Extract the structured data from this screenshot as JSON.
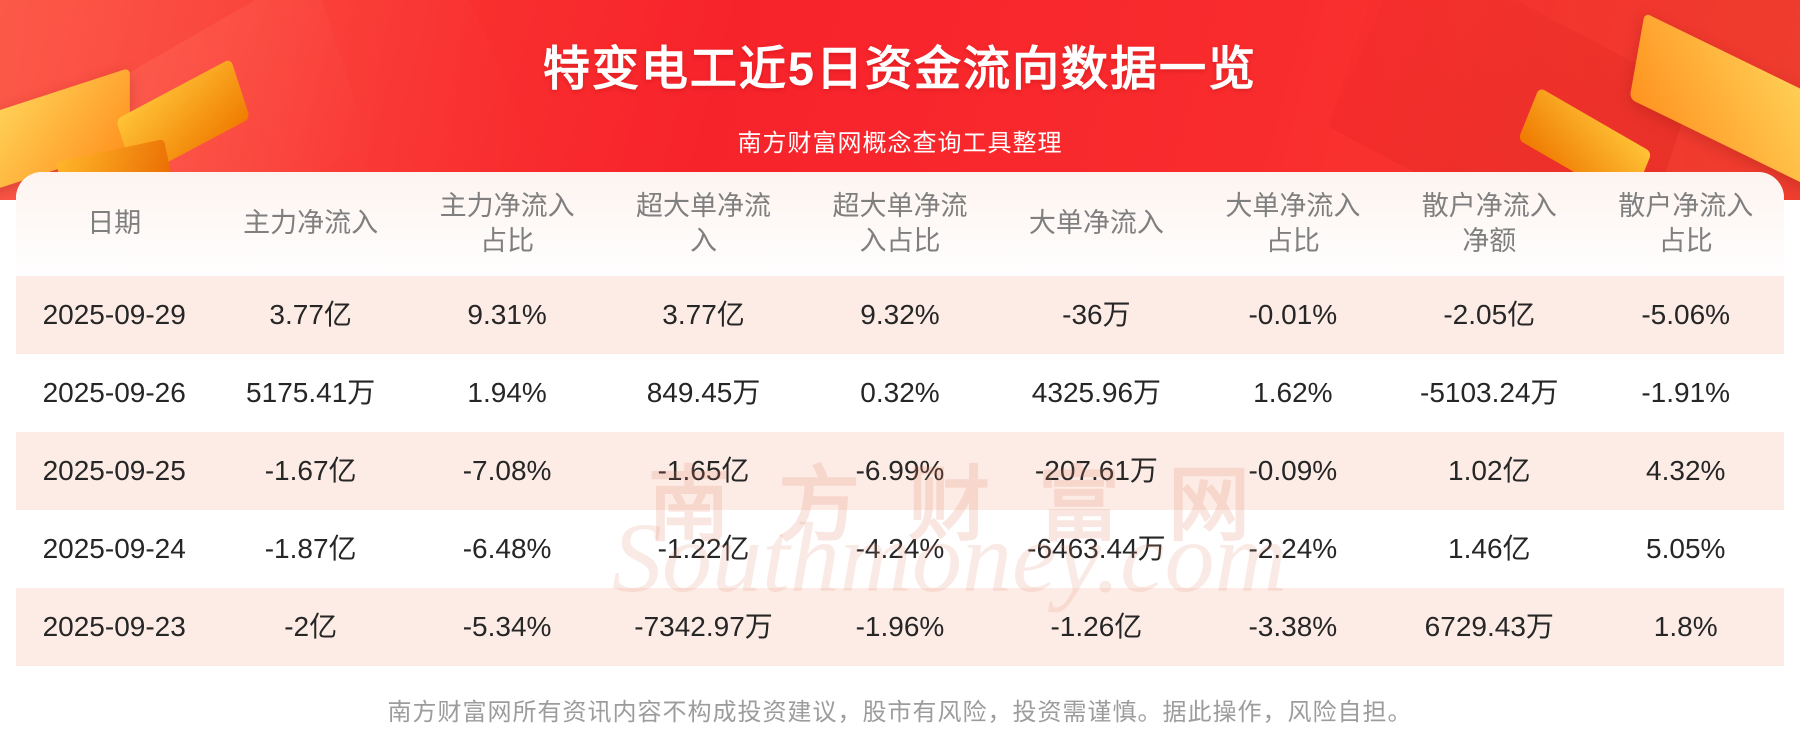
{
  "page": {
    "title": "特变电工近5日资金流向数据一览",
    "subtitle": "南方财富网概念查询工具整理",
    "disclaimer": "南方财富网所有资讯内容不构成投资建议，股市有风险，投资需谨慎。据此操作，风险自担。"
  },
  "watermark": {
    "cn": "南方财富网",
    "en": "Southmoney.com"
  },
  "colors": {
    "banner_red": "#f7232b",
    "gold_accent": "#ffab2e",
    "row_pink": "#fdece6",
    "header_text": "#7f7f7f",
    "cell_text": "#262626",
    "footer_text": "#9c9c9c"
  },
  "chart_data": {
    "type": "table",
    "title": "特变电工近5日资金流向数据一览",
    "subtitle": "南方财富网概念查询工具整理",
    "columns": [
      "日期",
      "主力净流入",
      "主力净流入占比",
      "超大单净流入",
      "超大单净流入占比",
      "大单净流入",
      "大单净流入占比",
      "散户净流入净额",
      "散户净流入占比"
    ],
    "rows": [
      [
        "2025-09-29",
        "3.77亿",
        "9.31%",
        "3.77亿",
        "9.32%",
        "-36万",
        "-0.01%",
        "-2.05亿",
        "-5.06%"
      ],
      [
        "2025-09-26",
        "5175.41万",
        "1.94%",
        "849.45万",
        "0.32%",
        "4325.96万",
        "1.62%",
        "-5103.24万",
        "-1.91%"
      ],
      [
        "2025-09-25",
        "-1.67亿",
        "-7.08%",
        "-1.65亿",
        "-6.99%",
        "-207.61万",
        "-0.09%",
        "1.02亿",
        "4.32%"
      ],
      [
        "2025-09-24",
        "-1.87亿",
        "-6.48%",
        "-1.22亿",
        "-4.24%",
        "-6463.44万",
        "-2.24%",
        "1.46亿",
        "5.05%"
      ],
      [
        "2025-09-23",
        "-2亿",
        "-5.34%",
        "-7342.97万",
        "-1.96%",
        "-1.26亿",
        "-3.38%",
        "6729.43万",
        "1.8%"
      ]
    ]
  }
}
